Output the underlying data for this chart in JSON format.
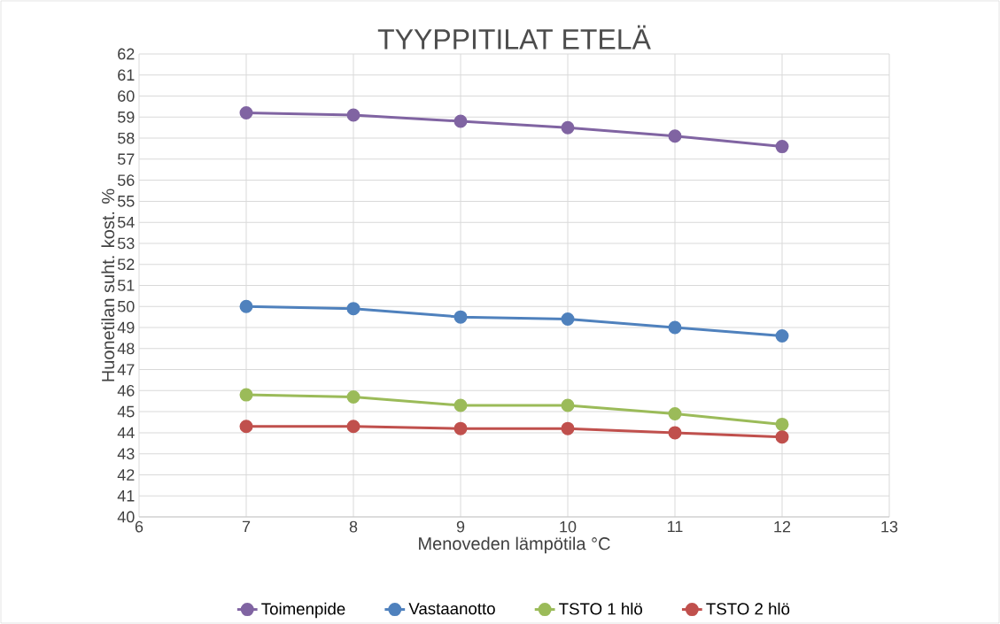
{
  "chart_data": {
    "type": "line",
    "title": "TYYPPITILAT ETELÄ",
    "xlabel": "Menoveden lämpötila °C",
    "ylabel": "Huonetilan suht. kost. %",
    "x": [
      7,
      8,
      9,
      10,
      11,
      12
    ],
    "series": [
      {
        "name": "Toimenpide",
        "color": "#8064a2",
        "values": [
          59.2,
          59.1,
          58.8,
          58.5,
          58.1,
          57.6
        ]
      },
      {
        "name": "Vastaanotto",
        "color": "#4f81bd",
        "values": [
          50.0,
          49.9,
          49.5,
          49.4,
          49.0,
          48.6
        ]
      },
      {
        "name": "TSTO 1 hlö",
        "color": "#9bbb59",
        "values": [
          45.8,
          45.7,
          45.3,
          45.3,
          44.9,
          44.4
        ]
      },
      {
        "name": "TSTO 2 hlö",
        "color": "#c0504d",
        "values": [
          44.3,
          44.3,
          44.2,
          44.2,
          44.0,
          43.8
        ]
      }
    ],
    "xlim": [
      6,
      13
    ],
    "ylim": [
      40,
      62
    ],
    "xticks": [
      6,
      7,
      8,
      9,
      10,
      11,
      12,
      13
    ],
    "yticks": [
      40,
      41,
      42,
      43,
      44,
      45,
      46,
      47,
      48,
      49,
      50,
      51,
      52,
      53,
      54,
      55,
      56,
      57,
      58,
      59,
      60,
      61,
      62
    ],
    "grid": true,
    "legend": "bottom",
    "marker": "circle",
    "line_style": "solid"
  }
}
